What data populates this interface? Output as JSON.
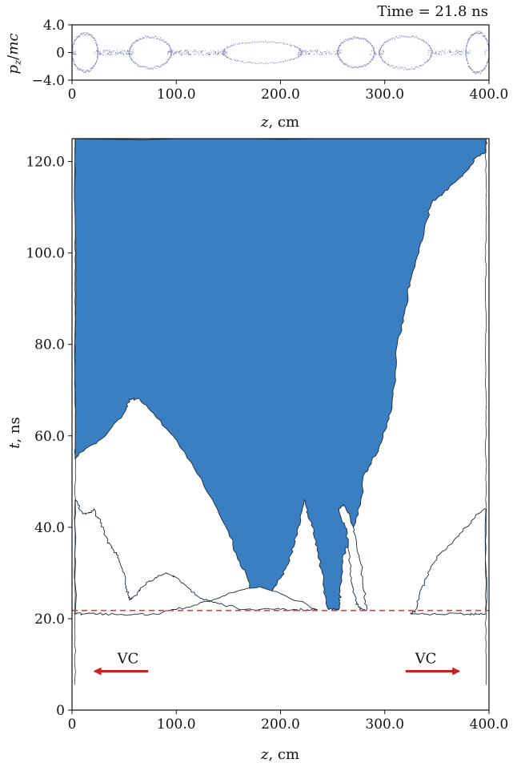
{
  "chart_data": [
    {
      "type": "scatter",
      "annotation": "Time = 21.8 ns",
      "xlabel": "z, cm",
      "ylabel": "p_z/mc",
      "xlim": [
        0,
        400
      ],
      "ylim": [
        -4,
        4
      ],
      "x_ticks": [
        "0",
        "100.0",
        "200.0",
        "300.0",
        "400.0"
      ],
      "y_ticks": [
        "4.0",
        "0",
        "−4.0"
      ],
      "colors": {
        "points": "#5a5ab4"
      },
      "phase_space_bubbles": [
        {
          "z_start": 0,
          "z_end": 25,
          "pz_amplitude": 2.8
        },
        {
          "z_start": 55,
          "z_end": 95,
          "pz_amplitude": 2.3
        },
        {
          "z_start": 145,
          "z_end": 220,
          "pz_amplitude": 1.6
        },
        {
          "z_start": 255,
          "z_end": 290,
          "pz_amplitude": 2.2
        },
        {
          "z_start": 295,
          "z_end": 345,
          "pz_amplitude": 2.4
        },
        {
          "z_start": 378,
          "z_end": 400,
          "pz_amplitude": 3.0
        }
      ]
    },
    {
      "type": "area",
      "xlabel": "z, cm",
      "ylabel": "t, ns",
      "xlim": [
        0,
        400
      ],
      "ylim": [
        0,
        125
      ],
      "x_ticks": [
        "0",
        "100.0",
        "200.0",
        "300.0",
        "400.0"
      ],
      "y_ticks": [
        "0",
        "20.0",
        "40.0",
        "60.0",
        "80.0",
        "100.0",
        "120.0"
      ],
      "colors": {
        "fill": "#3a7fc1",
        "reference_line": "#e03a3a",
        "arrows": "#cc1f1f"
      },
      "reference_line_t": 21.8,
      "arrows": [
        {
          "label": "VC",
          "z_from": 73,
          "z_to": 22,
          "t": 8.5
        },
        {
          "label": "VC",
          "z_from": 320,
          "z_to": 371,
          "t": 8.5
        }
      ],
      "filled_region": [
        [
          3,
          125
        ],
        [
          397,
          125
        ],
        [
          397,
          122
        ],
        [
          388,
          121
        ],
        [
          382,
          119
        ],
        [
          370,
          116
        ],
        [
          356,
          113
        ],
        [
          345,
          111
        ],
        [
          340,
          107
        ],
        [
          333,
          101
        ],
        [
          327,
          96
        ],
        [
          322,
          91
        ],
        [
          318,
          85
        ],
        [
          312,
          80
        ],
        [
          310,
          73
        ],
        [
          307,
          67
        ],
        [
          302,
          62
        ],
        [
          294,
          57
        ],
        [
          287,
          54
        ],
        [
          281,
          52
        ],
        [
          277,
          46
        ],
        [
          272,
          41
        ],
        [
          268,
          37
        ],
        [
          262,
          35
        ],
        [
          259,
          31
        ],
        [
          257,
          27
        ],
        [
          257,
          24
        ],
        [
          256,
          22
        ],
        [
          252,
          22
        ],
        [
          246,
          22
        ],
        [
          243,
          25
        ],
        [
          240,
          30
        ],
        [
          235,
          35
        ],
        [
          232,
          39
        ],
        [
          226,
          43
        ],
        [
          223,
          46
        ],
        [
          219,
          42
        ],
        [
          215,
          38
        ],
        [
          210,
          34
        ],
        [
          205,
          31
        ],
        [
          197,
          28
        ],
        [
          188,
          25
        ],
        [
          182,
          23
        ],
        [
          178,
          22
        ],
        [
          174,
          25
        ],
        [
          168,
          29
        ],
        [
          159,
          33
        ],
        [
          150,
          39
        ],
        [
          137,
          45
        ],
        [
          117,
          53
        ],
        [
          97,
          60
        ],
        [
          78,
          65
        ],
        [
          65,
          68
        ],
        [
          55,
          68
        ],
        [
          50,
          65
        ],
        [
          32,
          60
        ],
        [
          12,
          57
        ],
        [
          3,
          55
        ]
      ],
      "gaps": [
        [
          [
            3,
            46
          ],
          [
            10,
            43
          ],
          [
            16,
            43
          ],
          [
            21,
            44
          ],
          [
            25,
            42
          ],
          [
            30,
            40
          ],
          [
            34,
            37
          ],
          [
            40,
            35
          ],
          [
            45,
            33
          ],
          [
            50,
            30
          ],
          [
            52,
            27
          ],
          [
            54,
            25
          ],
          [
            55,
            24
          ],
          [
            60,
            25
          ],
          [
            68,
            27
          ],
          [
            80,
            29
          ],
          [
            90,
            30
          ],
          [
            100,
            29
          ],
          [
            110,
            27
          ],
          [
            120,
            25
          ],
          [
            130,
            24
          ],
          [
            145,
            23
          ],
          [
            165,
            22
          ],
          [
            180,
            22
          ],
          [
            200,
            22
          ],
          [
            215,
            22
          ],
          [
            230,
            22
          ],
          [
            235,
            22
          ],
          [
            205,
            25
          ],
          [
            180,
            27
          ],
          [
            158,
            26
          ],
          [
            145,
            25
          ],
          [
            120,
            23
          ],
          [
            100,
            22
          ],
          [
            80,
            21
          ],
          [
            60,
            21
          ],
          [
            40,
            21
          ],
          [
            25,
            21
          ],
          [
            10,
            21
          ],
          [
            3,
            21
          ]
        ],
        [
          [
            397,
            44
          ],
          [
            390,
            43
          ],
          [
            378,
            40
          ],
          [
            366,
            37
          ],
          [
            352,
            34
          ],
          [
            344,
            31
          ],
          [
            338,
            28
          ],
          [
            333,
            25
          ],
          [
            330,
            22
          ],
          [
            325,
            21
          ],
          [
            340,
            21
          ],
          [
            360,
            21
          ],
          [
            380,
            21
          ],
          [
            390,
            21
          ],
          [
            397,
            21
          ]
        ],
        [
          [
            256,
            44
          ],
          [
            262,
            40
          ],
          [
            265,
            36
          ],
          [
            267,
            31
          ],
          [
            269,
            27
          ],
          [
            272,
            24
          ],
          [
            276,
            22
          ],
          [
            283,
            22
          ],
          [
            280,
            26
          ],
          [
            277,
            32
          ],
          [
            272,
            38
          ],
          [
            266,
            43
          ],
          [
            260,
            45
          ]
        ]
      ]
    }
  ]
}
